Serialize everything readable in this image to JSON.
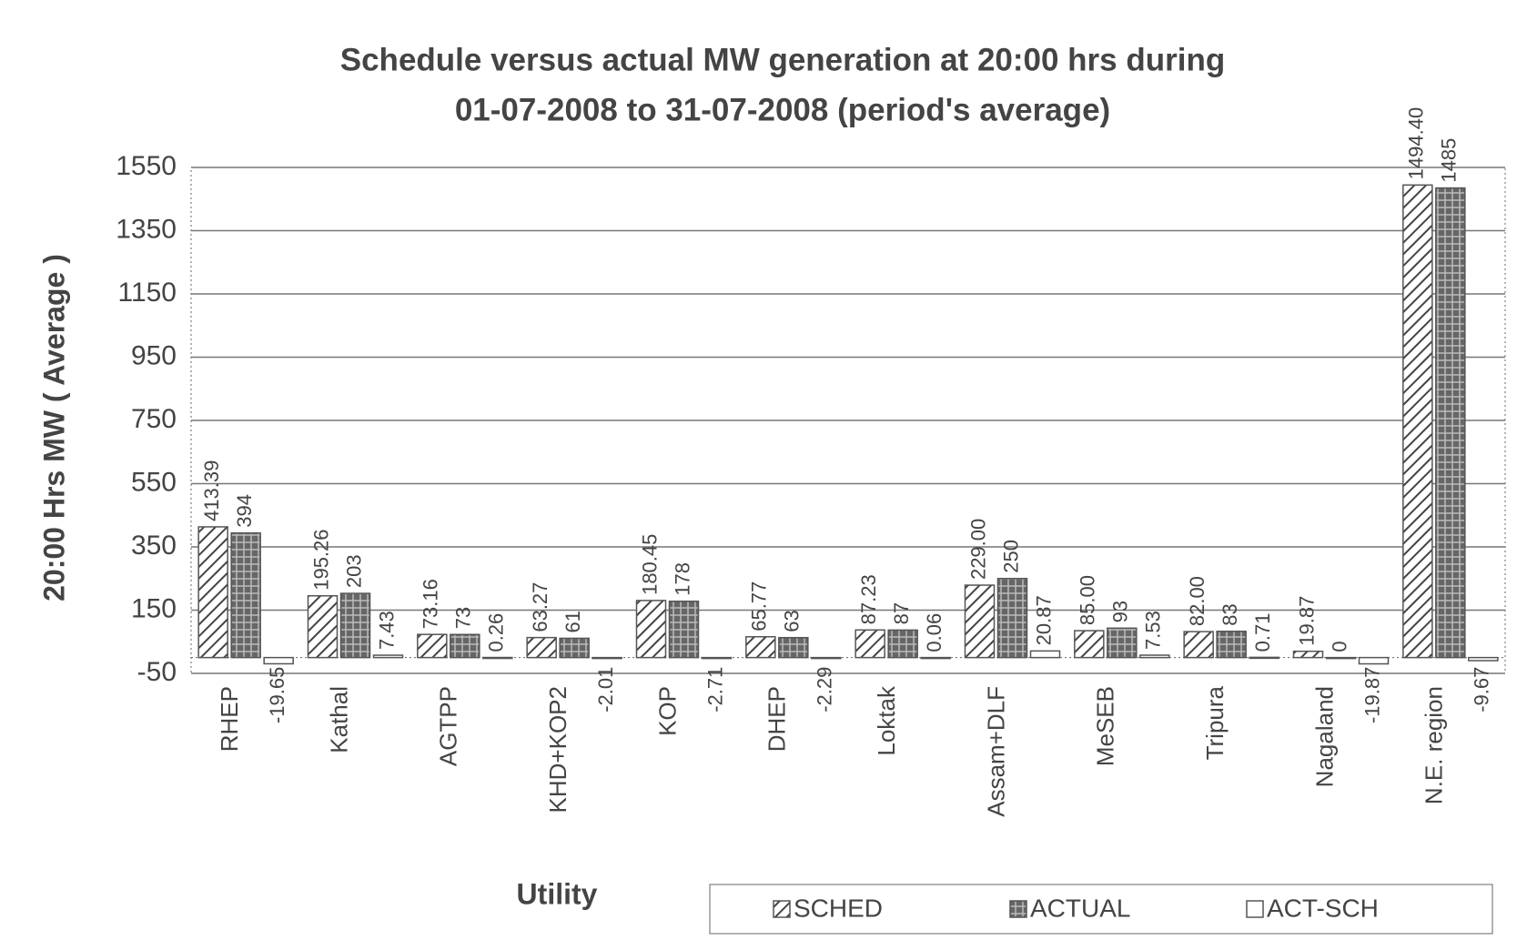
{
  "chart_data": {
    "type": "bar",
    "title": "Schedule versus actual MW generation at 20:00 hrs during",
    "subtitle": "01-07-2008 to 31-07-2008 (period's average)",
    "x_label": "Utility",
    "y_label": "20:00 Hrs MW ( Average )",
    "categories": [
      "RHEP",
      "Kathal",
      "AGTPP",
      "KHD+KOP2",
      "KOP",
      "DHEP",
      "Loktak",
      "Assam+DLF",
      "MeSEB",
      "Tripura",
      "Nagaland",
      "N.E. region"
    ],
    "series": [
      {
        "name": "SCHED",
        "color": "#555555",
        "pattern": "hatch",
        "values": [
          413.39,
          195.26,
          73.16,
          63.27,
          180.45,
          65.77,
          87.23,
          229,
          85,
          82,
          19.87,
          1494.4
        ],
        "value_labels": [
          "413.39",
          "195.26",
          "73.16",
          "63.27",
          "180.45",
          "65.77",
          "87.23",
          "229.00",
          "85.00",
          "82.00",
          "19.87",
          "1494.40"
        ]
      },
      {
        "name": "ACTUAL",
        "color": "#555555",
        "pattern": "grid",
        "values": [
          394,
          203,
          73,
          61,
          178,
          63,
          87,
          250,
          93,
          83,
          0,
          1485
        ]
      },
      {
        "name": "ACT-SCH",
        "color": "#555555",
        "pattern": "none",
        "values": [
          -19.65,
          7.43,
          0.26,
          -2.01,
          -2.71,
          -2.29,
          0.06,
          20.87,
          7.53,
          0.71,
          -19.87,
          -9.67
        ]
      }
    ],
    "ylim": [
      -50,
      1550
    ],
    "yticks": [
      -50,
      150,
      350,
      550,
      750,
      950,
      1150,
      1350,
      1550
    ],
    "grid": true,
    "legend": "bottom"
  }
}
